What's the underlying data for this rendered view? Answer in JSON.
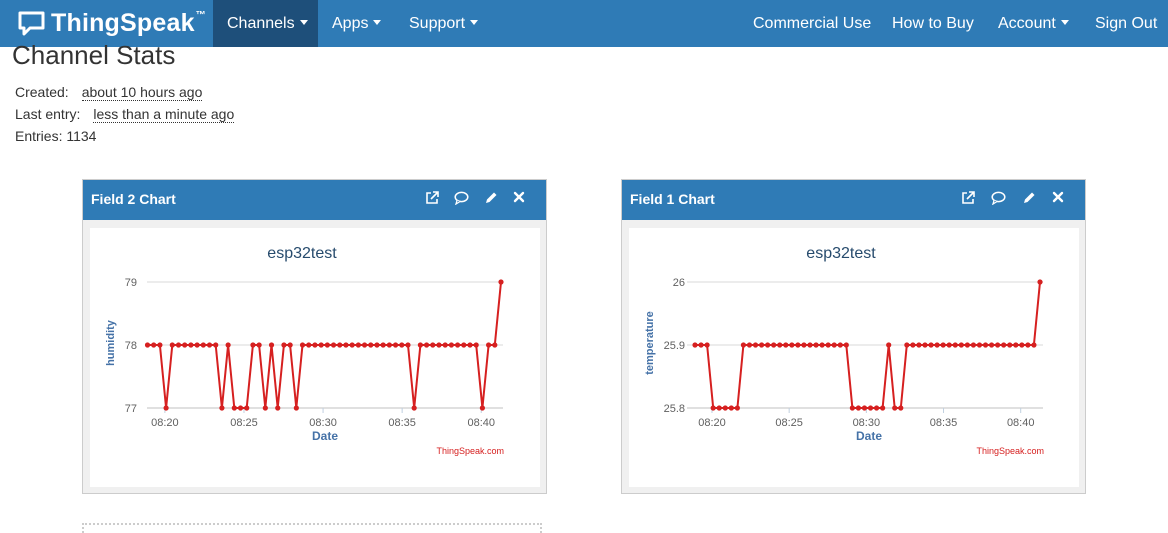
{
  "navbar": {
    "brand": "ThingSpeak",
    "trademark": "™",
    "left_items": [
      {
        "label": "Channels",
        "dropdown": true,
        "active": true
      },
      {
        "label": "Apps",
        "dropdown": true,
        "active": false
      },
      {
        "label": "Support",
        "dropdown": true,
        "active": false
      }
    ],
    "right_items": [
      {
        "label": "Commercial Use",
        "dropdown": false
      },
      {
        "label": "How to Buy",
        "dropdown": false
      },
      {
        "label": "Account",
        "dropdown": true
      },
      {
        "label": "Sign Out",
        "dropdown": false
      }
    ]
  },
  "stats": {
    "title": "Channel Stats",
    "created_label": "Created:",
    "created_value": "about 10 hours ago",
    "last_entry_label": "Last entry:",
    "last_entry_value": "less than a minute ago",
    "entries_label": "Entries:",
    "entries_value": "1134"
  },
  "colors": {
    "nav": "#2f7bb6",
    "nav_active": "#1e4f7a",
    "series": "#d62020",
    "axis_title": "#4572a7"
  },
  "charts": [
    {
      "card_title": "Field 2 Chart",
      "icons": [
        "external-link-icon",
        "comment-icon",
        "pencil-icon",
        "close-icon"
      ],
      "chart_data": {
        "type": "line",
        "title": "esp32test",
        "xlabel": "Date",
        "ylabel": "humidity",
        "credit": "ThingSpeak.com",
        "x_ticks": [
          "08:20",
          "08:25",
          "08:30",
          "08:35",
          "08:40"
        ],
        "x_range_min": [
          18.9,
          41.25
        ],
        "y_ticks": [
          "77",
          "78",
          "79"
        ],
        "ylim": [
          77,
          79
        ],
        "values": [
          78,
          78,
          78,
          77,
          78,
          78,
          78,
          78,
          78,
          78,
          78,
          78,
          77,
          78,
          77,
          77,
          77,
          78,
          78,
          77,
          78,
          77,
          78,
          78,
          77,
          78,
          78,
          78,
          78,
          78,
          78,
          78,
          78,
          78,
          78,
          78,
          78,
          78,
          78,
          78,
          78,
          78,
          78,
          77,
          78,
          78,
          78,
          78,
          78,
          78,
          78,
          78,
          78,
          78,
          77,
          78,
          78,
          79
        ]
      }
    },
    {
      "card_title": "Field 1 Chart",
      "icons": [
        "external-link-icon",
        "comment-icon",
        "pencil-icon",
        "close-icon"
      ],
      "chart_data": {
        "type": "line",
        "title": "esp32test",
        "xlabel": "Date",
        "ylabel": "temperature",
        "credit": "ThingSpeak.com",
        "x_ticks": [
          "08:20",
          "08:25",
          "08:30",
          "08:35",
          "08:40"
        ],
        "x_range_min": [
          18.9,
          41.25
        ],
        "y_ticks": [
          "25.8",
          "25.9",
          "26"
        ],
        "ylim": [
          25.8,
          26
        ],
        "values": [
          25.9,
          25.9,
          25.9,
          25.8,
          25.8,
          25.8,
          25.8,
          25.8,
          25.9,
          25.9,
          25.9,
          25.9,
          25.9,
          25.9,
          25.9,
          25.9,
          25.9,
          25.9,
          25.9,
          25.9,
          25.9,
          25.9,
          25.9,
          25.9,
          25.9,
          25.9,
          25.8,
          25.8,
          25.8,
          25.8,
          25.8,
          25.8,
          25.9,
          25.8,
          25.8,
          25.9,
          25.9,
          25.9,
          25.9,
          25.9,
          25.9,
          25.9,
          25.9,
          25.9,
          25.9,
          25.9,
          25.9,
          25.9,
          25.9,
          25.9,
          25.9,
          25.9,
          25.9,
          25.9,
          25.9,
          25.9,
          25.9,
          26
        ]
      }
    }
  ]
}
